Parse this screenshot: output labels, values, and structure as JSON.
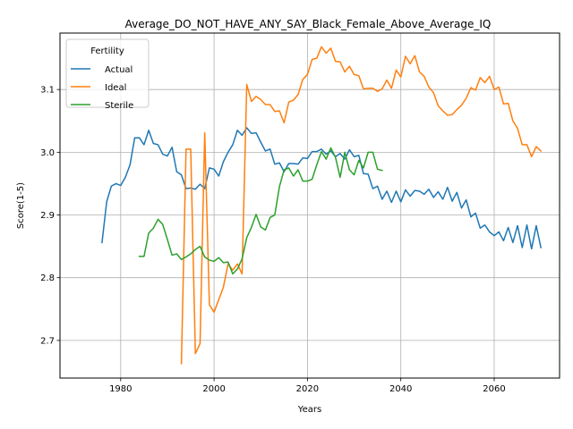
{
  "chart_data": {
    "type": "line",
    "title": "Average_DO_NOT_HAVE_ANY_SAY_Black_Female_Above_Average_IQ",
    "xlabel": "Years",
    "ylabel": "Score(1-5)",
    "xlim": [
      1967,
      2074
    ],
    "ylim": [
      2.64,
      3.19
    ],
    "xticks": [
      1980,
      2000,
      2020,
      2040,
      2060
    ],
    "yticks": [
      2.7,
      2.8,
      2.9,
      3.0,
      3.1
    ],
    "grid": true,
    "legend": {
      "title": "Fertility",
      "placement": "top-left"
    },
    "series": [
      {
        "name": "Actual",
        "color": "#1f77b4",
        "x": [
          1976,
          1977,
          1978,
          1979,
          1980,
          1981,
          1982,
          1983,
          1984,
          1985,
          1986,
          1987,
          1988,
          1989,
          1990,
          1991,
          1992,
          1993,
          1994,
          1995,
          1996,
          1997,
          1998,
          1999,
          2000,
          2001,
          2002,
          2003,
          2004,
          2005,
          2006,
          2007,
          2008,
          2009,
          2010,
          2011,
          2012,
          2013,
          2014,
          2015,
          2016,
          2017,
          2018,
          2019,
          2020,
          2021,
          2022,
          2023,
          2024,
          2025,
          2026,
          2027,
          2028,
          2029,
          2030,
          2031,
          2032,
          2033,
          2034,
          2035,
          2036,
          2037,
          2038,
          2039,
          2040,
          2041,
          2042,
          2043,
          2044,
          2045,
          2046,
          2047,
          2048,
          2049,
          2050,
          2051,
          2052,
          2053,
          2054,
          2055,
          2056,
          2057,
          2058,
          2059,
          2060,
          2061,
          2062,
          2063,
          2064,
          2065,
          2066,
          2067,
          2068,
          2069,
          2070
        ],
        "values": [
          2.856,
          2.921,
          2.946,
          2.95,
          2.947,
          2.96,
          2.98,
          3.023,
          3.023,
          3.012,
          3.035,
          3.014,
          3.012,
          2.997,
          2.994,
          3.008,
          2.969,
          2.964,
          2.942,
          2.943,
          2.941,
          2.949,
          2.942,
          2.975,
          2.973,
          2.962,
          2.985,
          3.0,
          3.012,
          3.035,
          3.027,
          3.039,
          3.03,
          3.031,
          3.016,
          3.002,
          3.005,
          2.981,
          2.983,
          2.969,
          2.982,
          2.982,
          2.981,
          2.991,
          2.99,
          3.001,
          3.001,
          3.005,
          2.997,
          3.002,
          2.993,
          2.998,
          2.989,
          3.004,
          2.993,
          2.995,
          2.966,
          2.965,
          2.942,
          2.946,
          2.925,
          2.938,
          2.92,
          2.938,
          2.921,
          2.94,
          2.93,
          2.939,
          2.938,
          2.933,
          2.941,
          2.928,
          2.937,
          2.925,
          2.944,
          2.922,
          2.936,
          2.911,
          2.924,
          2.897,
          2.903,
          2.879,
          2.884,
          2.873,
          2.867,
          2.873,
          2.859,
          2.88,
          2.856,
          2.883,
          2.848,
          2.884,
          2.846,
          2.883,
          2.848
        ]
      },
      {
        "name": "Ideal",
        "color": "#ff7f0e",
        "x": [
          1993,
          1994,
          1995,
          1996,
          1997,
          1998,
          1999,
          2000,
          2001,
          2002,
          2003,
          2004,
          2005,
          2006,
          2007,
          2008,
          2009,
          2010,
          2011,
          2012,
          2013,
          2014,
          2015,
          2016,
          2017,
          2018,
          2019,
          2020,
          2021,
          2022,
          2023,
          2024,
          2025,
          2026,
          2027,
          2028,
          2029,
          2030,
          2031,
          2032,
          2033,
          2034,
          2035,
          2036,
          2037,
          2038,
          2039,
          2040,
          2041,
          2042,
          2043,
          2044,
          2045,
          2046,
          2047,
          2048,
          2049,
          2050,
          2051,
          2052,
          2053,
          2054,
          2055,
          2056,
          2057,
          2058,
          2059,
          2060,
          2061,
          2062,
          2063,
          2064,
          2065,
          2066,
          2067,
          2068,
          2069,
          2070
        ],
        "values": [
          2.663,
          3.005,
          3.005,
          2.679,
          2.695,
          3.031,
          2.757,
          2.745,
          2.765,
          2.785,
          2.822,
          2.812,
          2.822,
          2.806,
          3.108,
          3.081,
          3.089,
          3.084,
          3.076,
          3.076,
          3.065,
          3.066,
          3.047,
          3.08,
          3.083,
          3.092,
          3.116,
          3.124,
          3.148,
          3.15,
          3.168,
          3.158,
          3.166,
          3.145,
          3.144,
          3.128,
          3.137,
          3.124,
          3.122,
          3.101,
          3.102,
          3.102,
          3.097,
          3.101,
          3.115,
          3.102,
          3.131,
          3.12,
          3.153,
          3.141,
          3.154,
          3.128,
          3.121,
          3.104,
          3.095,
          3.074,
          3.066,
          3.059,
          3.06,
          3.068,
          3.075,
          3.086,
          3.103,
          3.099,
          3.119,
          3.111,
          3.121,
          3.1,
          3.104,
          3.077,
          3.078,
          3.05,
          3.038,
          3.012,
          3.012,
          2.993,
          3.009,
          3.002
        ]
      },
      {
        "name": "Sterile",
        "color": "#2ca02c",
        "x": [
          1984,
          1985,
          1986,
          1987,
          1988,
          1989,
          1990,
          1991,
          1992,
          1993,
          1994,
          1995,
          1996,
          1997,
          1998,
          1999,
          2000,
          2001,
          2002,
          2003,
          2004,
          2005,
          2006,
          2007,
          2008,
          2009,
          2010,
          2011,
          2012,
          2013,
          2014,
          2015,
          2016,
          2017,
          2018,
          2019,
          2020,
          2021,
          2022,
          2023,
          2024,
          2025,
          2026,
          2027,
          2028,
          2029,
          2030,
          2031,
          2032,
          2033,
          2034,
          2035,
          2036
        ],
        "values": [
          2.834,
          2.834,
          2.871,
          2.879,
          2.893,
          2.885,
          2.861,
          2.836,
          2.838,
          2.829,
          2.833,
          2.838,
          2.845,
          2.85,
          2.833,
          2.828,
          2.826,
          2.832,
          2.824,
          2.825,
          2.806,
          2.814,
          2.83,
          2.864,
          2.88,
          2.901,
          2.881,
          2.876,
          2.896,
          2.9,
          2.945,
          2.972,
          2.975,
          2.962,
          2.972,
          2.954,
          2.954,
          2.957,
          2.98,
          3.001,
          2.989,
          3.007,
          2.992,
          2.96,
          3.0,
          2.972,
          2.964,
          2.987,
          2.975,
          3.0,
          3.0,
          2.973,
          2.971
        ]
      }
    ]
  }
}
